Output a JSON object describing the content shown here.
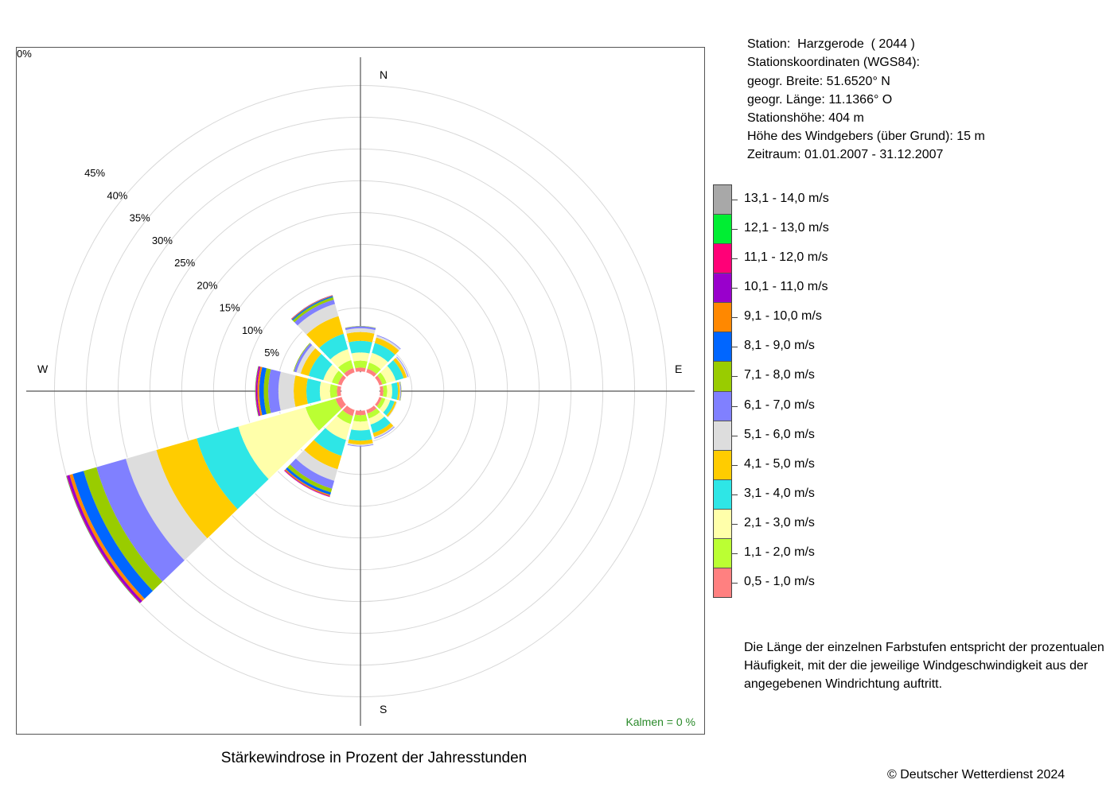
{
  "station": {
    "line1": "Station:  Harzgerode  ( 2044 )",
    "line2": "Stationskoordinaten (WGS84):",
    "line3": "geogr. Breite: 51.6520° N",
    "line4": "geogr. Länge: 11.1366° O",
    "line5": "Stationshöhe: 404 m",
    "line6": "Höhe des Windgebers (über Grund): 15 m",
    "line7": "Zeitraum: 01.01.2007 - 31.12.2007"
  },
  "note": "Die Länge der einzelnen Farbstufen entspricht der prozentualen Häufigkeit, mit der die jeweilige Windgeschwindigkeit aus der angegebenen Windrichtung auftritt.",
  "calm_label": "Kalmen  =  0 %",
  "copyright": "© Deutscher Wetterdienst  2024",
  "chart_data": {
    "type": "windrose",
    "title": "Stärkewindrose in Prozent der Jahresstunden",
    "directions": [
      "N",
      "E",
      "S",
      "W"
    ],
    "sector_angles_deg": [
      0,
      30,
      60,
      90,
      120,
      150,
      180,
      210,
      240,
      270,
      300,
      330
    ],
    "radial_ticks": [
      "0%",
      "5%",
      "10%",
      "15%",
      "20%",
      "25%",
      "30%",
      "35%",
      "40%",
      "45%"
    ],
    "radial_max": 45,
    "radial_offset": 3.1,
    "classes": [
      {
        "label": "0,5 - 1,0 m/s",
        "color": "#FF8080"
      },
      {
        "label": "1,1 - 2,0 m/s",
        "color": "#BBFF33"
      },
      {
        "label": "2,1 - 3,0 m/s",
        "color": "#FFFFAA"
      },
      {
        "label": "3,1 - 4,0 m/s",
        "color": "#2EE6E6"
      },
      {
        "label": "4,1 - 5,0 m/s",
        "color": "#FFCC00"
      },
      {
        "label": "5,1 - 6,0 m/s",
        "color": "#DDDDDD"
      },
      {
        "label": "6,1 - 7,0 m/s",
        "color": "#8080FF"
      },
      {
        "label": "7,1 - 8,0 m/s",
        "color": "#99CC00"
      },
      {
        "label": "8,1 - 9,0 m/s",
        "color": "#0066FF"
      },
      {
        "label": "9,1 - 10,0 m/s",
        "color": "#FF8800"
      },
      {
        "label": "10,1 - 11,0 m/s",
        "color": "#9900CC"
      },
      {
        "label": "11,1 - 12,0 m/s",
        "color": "#FF0077"
      },
      {
        "label": "12,1 - 13,0 m/s",
        "color": "#00EE33"
      },
      {
        "label": "13,1 - 14,0 m/s",
        "color": "#A8A8A8"
      }
    ],
    "sectors": [
      {
        "angle": 0,
        "values": [
          0.6,
          1.1,
          1.3,
          1.8,
          1.4,
          0.6,
          0.3,
          0.05,
          0,
          0,
          0,
          0,
          0,
          0
        ]
      },
      {
        "angle": 30,
        "values": [
          0.6,
          1.0,
          1.6,
          1.6,
          0.9,
          0.3,
          0.1,
          0,
          0,
          0,
          0,
          0,
          0,
          0
        ]
      },
      {
        "angle": 60,
        "values": [
          0.5,
          0.7,
          1.5,
          1.3,
          0.5,
          0.2,
          0.1,
          0,
          0,
          0,
          0,
          0,
          0,
          0
        ]
      },
      {
        "angle": 90,
        "values": [
          0.5,
          0.6,
          0.8,
          0.9,
          0.3,
          0.1,
          0.1,
          0.05,
          0,
          0,
          0,
          0,
          0,
          0
        ]
      },
      {
        "angle": 120,
        "values": [
          0.4,
          0.6,
          0.8,
          0.7,
          0.3,
          0.1,
          0,
          0,
          0,
          0,
          0,
          0,
          0,
          0
        ]
      },
      {
        "angle": 150,
        "values": [
          0.6,
          0.8,
          1.0,
          1.4,
          0.6,
          0.2,
          0.1,
          0,
          0,
          0,
          0,
          0,
          0,
          0
        ]
      },
      {
        "angle": 180,
        "values": [
          0.7,
          1.0,
          1.4,
          1.6,
          0.6,
          0.2,
          0.1,
          0,
          0,
          0,
          0,
          0,
          0,
          0
        ]
      },
      {
        "angle": 210,
        "values": [
          1.0,
          1.3,
          2.6,
          2.6,
          2.2,
          1.9,
          1.3,
          0.6,
          0.4,
          0.2,
          0.1,
          0.05,
          0,
          0
        ]
      },
      {
        "angle": 240,
        "values": [
          1.0,
          4.9,
          11.0,
          6.8,
          6.6,
          5.0,
          4.8,
          2.1,
          1.8,
          0.5,
          0.4,
          0.1,
          0.05,
          0
        ]
      },
      {
        "angle": 270,
        "values": [
          0.6,
          1.1,
          1.6,
          2.1,
          2.0,
          2.4,
          1.6,
          0.7,
          0.7,
          0.3,
          0.2,
          0.1,
          0.05,
          0
        ]
      },
      {
        "angle": 300,
        "values": [
          0.6,
          1.0,
          1.4,
          2.4,
          1.3,
          0.7,
          0.4,
          0.1,
          0,
          0,
          0,
          0,
          0,
          0
        ]
      },
      {
        "angle": 330,
        "values": [
          0.7,
          1.3,
          1.8,
          2.5,
          2.9,
          2.0,
          0.7,
          0.4,
          0.2,
          0.1,
          0.05,
          0,
          0,
          0
        ]
      }
    ]
  }
}
